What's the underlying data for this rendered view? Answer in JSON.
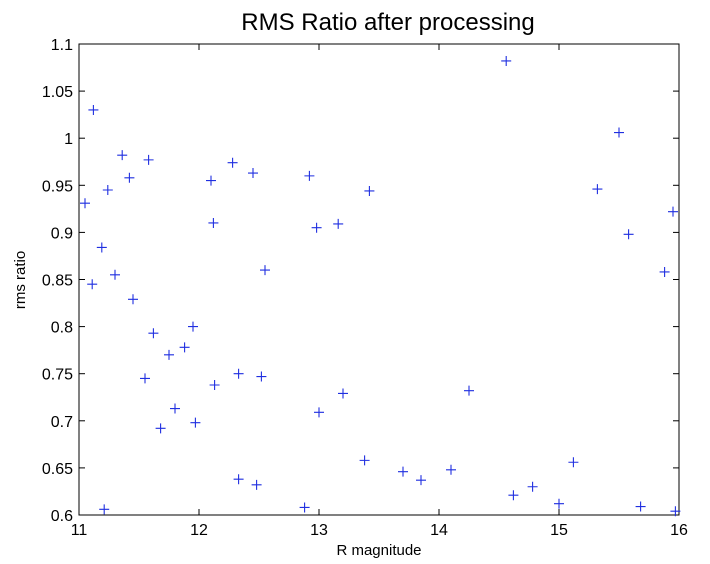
{
  "chart_data": {
    "type": "scatter",
    "title": "RMS Ratio after processing",
    "xlabel": "R magnitude",
    "ylabel": "rms ratio",
    "xlim": [
      11,
      16
    ],
    "ylim": [
      0.6,
      1.1
    ],
    "xticks": [
      "11",
      "12",
      "13",
      "14",
      "15",
      "16"
    ],
    "yticks": [
      "0.6",
      "0.65",
      "0.7",
      "0.75",
      "0.8",
      "0.85",
      "0.9",
      "0.95",
      "1",
      "1.05",
      "1.1"
    ],
    "grid": false,
    "legend": "none",
    "marker": "plus",
    "marker_color": "#1f2fe0",
    "series": [
      {
        "points": [
          [
            11.05,
            0.931
          ],
          [
            11.12,
            1.03
          ],
          [
            11.21,
            0.606
          ],
          [
            11.36,
            0.982
          ],
          [
            11.42,
            0.958
          ],
          [
            11.58,
            0.977
          ],
          [
            11.24,
            0.945
          ],
          [
            11.11,
            0.845
          ],
          [
            11.19,
            0.884
          ],
          [
            11.3,
            0.855
          ],
          [
            11.45,
            0.829
          ],
          [
            11.55,
            0.745
          ],
          [
            11.62,
            0.793
          ],
          [
            11.75,
            0.77
          ],
          [
            11.8,
            0.713
          ],
          [
            11.68,
            0.692
          ],
          [
            11.97,
            0.698
          ],
          [
            11.88,
            0.778
          ],
          [
            12.13,
            0.738
          ],
          [
            12.28,
            0.974
          ],
          [
            12.1,
            0.955
          ],
          [
            12.45,
            0.963
          ],
          [
            12.33,
            0.75
          ],
          [
            12.48,
            0.632
          ],
          [
            12.52,
            0.747
          ],
          [
            12.33,
            0.638
          ],
          [
            12.88,
            0.608
          ],
          [
            12.92,
            0.96
          ],
          [
            12.98,
            0.905
          ],
          [
            13.16,
            0.909
          ],
          [
            13.2,
            0.729
          ],
          [
            13.0,
            0.709
          ],
          [
            13.42,
            0.944
          ],
          [
            13.38,
            0.658
          ],
          [
            13.7,
            0.646
          ],
          [
            13.85,
            0.637
          ],
          [
            14.1,
            0.648
          ],
          [
            14.25,
            0.732
          ],
          [
            14.56,
            1.082
          ],
          [
            14.62,
            0.621
          ],
          [
            14.78,
            0.63
          ],
          [
            15.0,
            0.612
          ],
          [
            15.12,
            0.656
          ],
          [
            15.32,
            0.946
          ],
          [
            15.5,
            1.006
          ],
          [
            15.58,
            0.898
          ],
          [
            15.68,
            0.609
          ],
          [
            15.88,
            0.858
          ],
          [
            15.95,
            0.922
          ],
          [
            15.97,
            0.604
          ],
          [
            11.95,
            0.8
          ],
          [
            12.55,
            0.86
          ],
          [
            12.12,
            0.91
          ]
        ]
      }
    ]
  }
}
